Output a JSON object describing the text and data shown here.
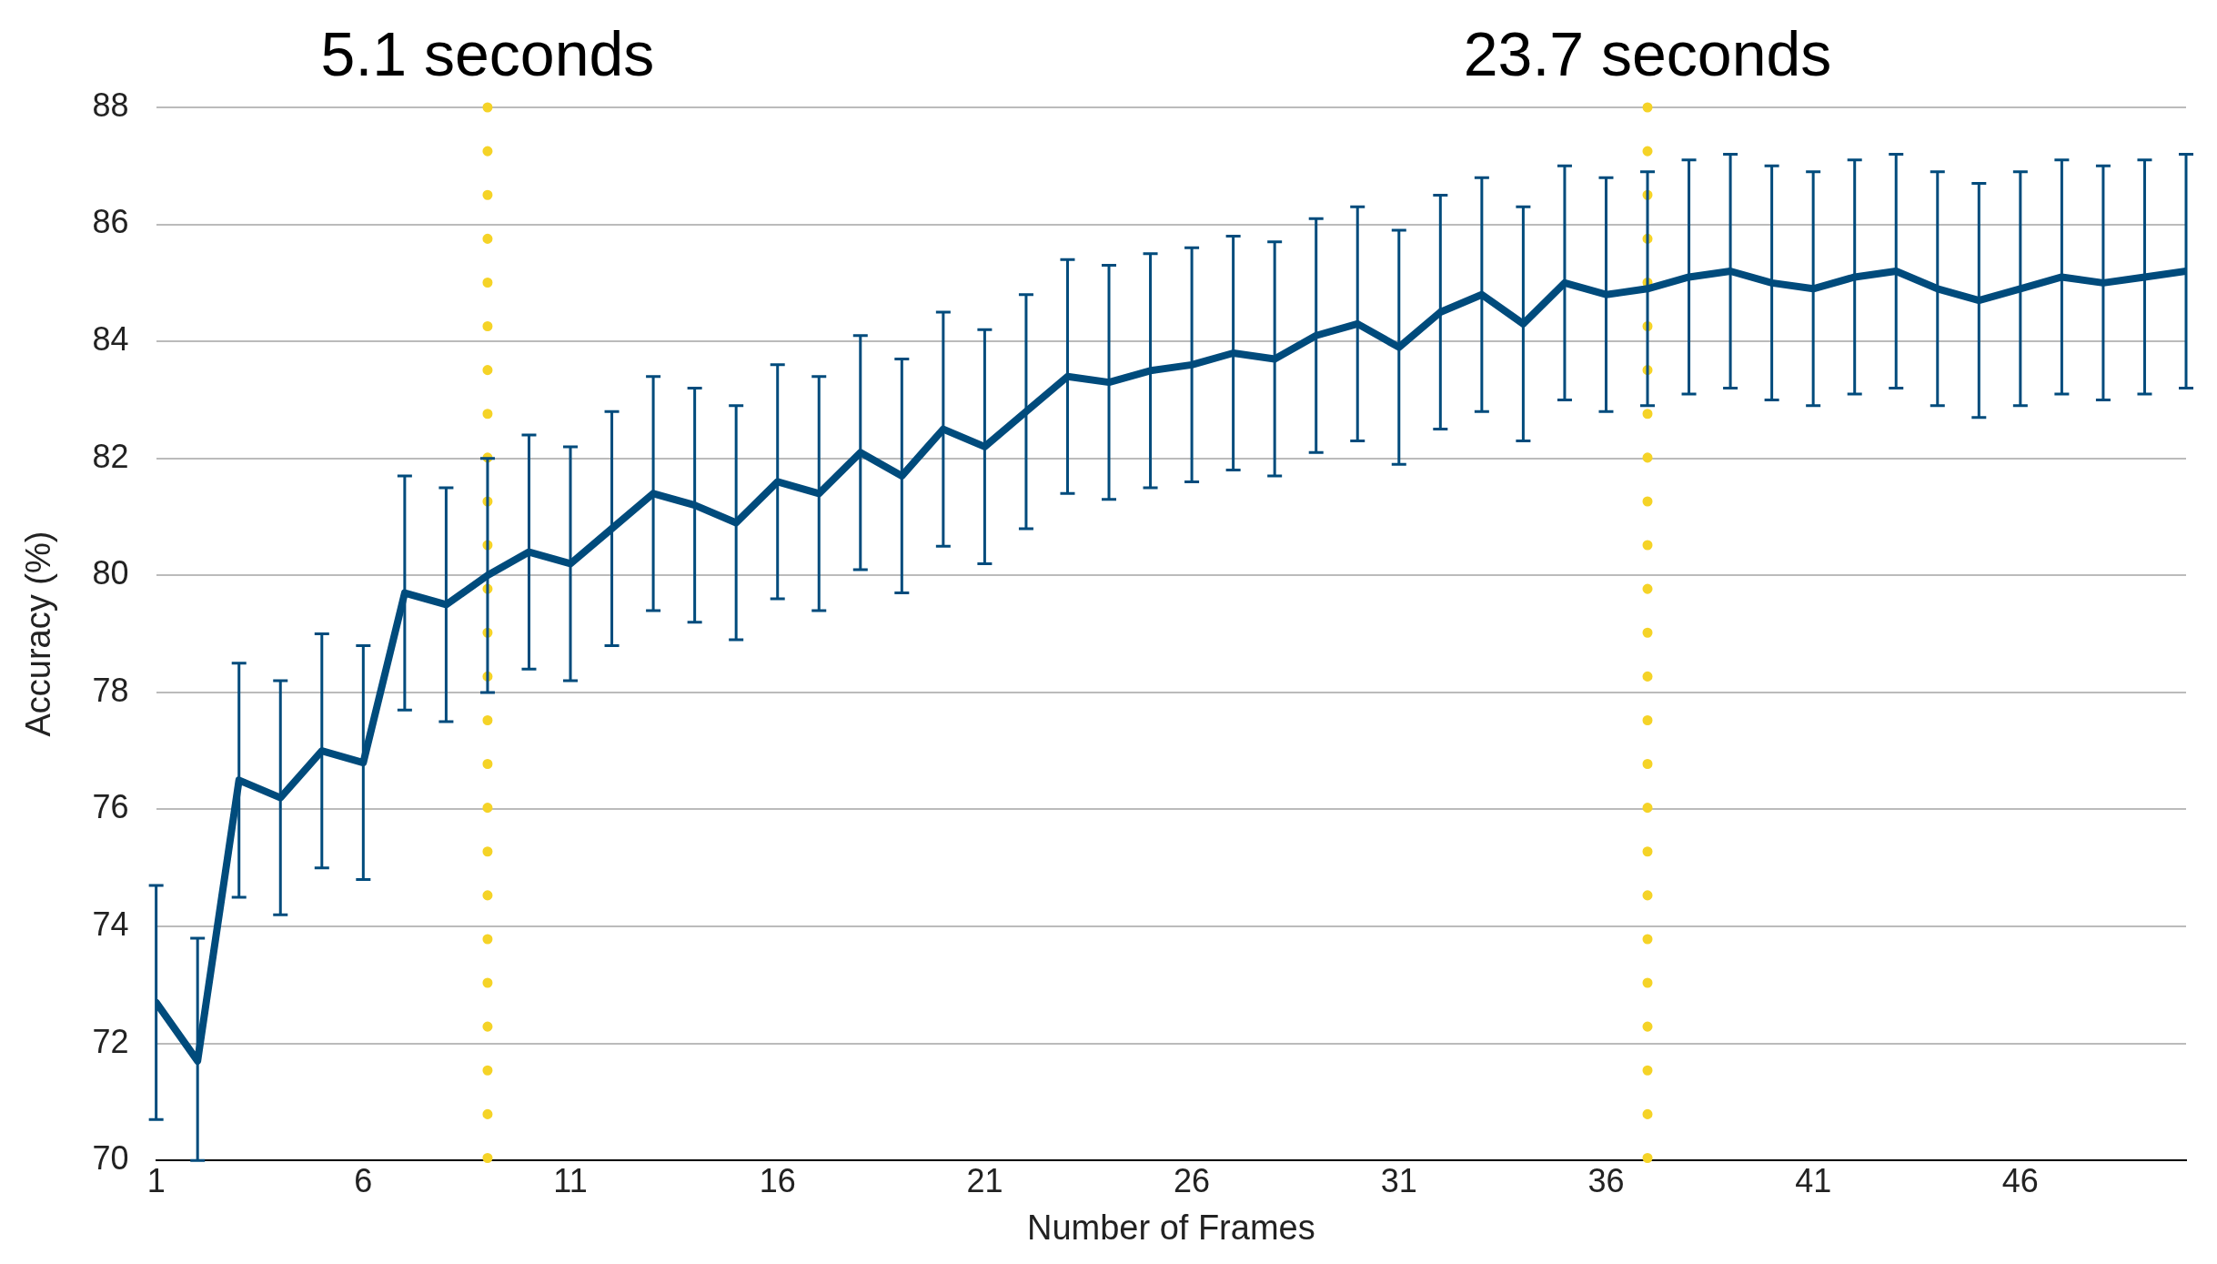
{
  "chart_data": {
    "type": "line",
    "xlabel": "Number of Frames",
    "ylabel": "Accuracy (%)",
    "x": [
      1,
      2,
      3,
      4,
      5,
      6,
      7,
      8,
      9,
      10,
      11,
      12,
      13,
      14,
      15,
      16,
      17,
      18,
      19,
      20,
      21,
      22,
      23,
      24,
      25,
      26,
      27,
      28,
      29,
      30,
      31,
      32,
      33,
      34,
      35,
      36,
      37,
      38,
      39,
      40,
      41,
      42,
      43,
      44,
      45,
      46,
      47,
      48,
      49,
      50
    ],
    "series": [
      {
        "color": "#004b7c",
        "values": [
          72.7,
          71.7,
          76.5,
          76.2,
          77.0,
          76.8,
          79.7,
          79.5,
          80.0,
          80.4,
          80.2,
          80.8,
          81.4,
          81.2,
          80.9,
          81.6,
          81.4,
          82.1,
          81.7,
          82.5,
          82.2,
          82.8,
          83.4,
          83.3,
          83.5,
          83.6,
          83.8,
          83.7,
          84.1,
          84.3,
          83.9,
          84.5,
          84.8,
          84.3,
          85.0,
          84.8,
          84.9,
          85.1,
          85.2,
          85.0,
          84.9,
          85.1,
          85.2,
          84.9,
          84.7,
          84.9,
          85.1,
          85.0,
          85.1,
          85.2
        ],
        "errors": [
          2,
          [
            70,
            73.8
          ],
          2,
          2,
          2,
          2,
          2,
          2,
          2,
          2,
          2,
          2,
          2,
          2,
          2,
          2,
          2,
          2,
          2,
          2,
          2,
          2,
          2,
          2,
          2,
          2,
          2,
          2,
          2,
          2,
          2,
          2,
          2,
          2,
          2,
          2,
          2,
          2,
          2,
          2,
          2,
          2,
          2,
          2,
          2,
          2,
          2,
          2,
          2,
          2
        ]
      }
    ],
    "xlim": [
      1,
      50
    ],
    "xticks": [
      1,
      6,
      11,
      16,
      21,
      26,
      31,
      36,
      41,
      46
    ],
    "ylim": [
      70,
      88
    ],
    "yticks": [
      70,
      72,
      74,
      76,
      78,
      80,
      82,
      84,
      86,
      88
    ],
    "grid": "y",
    "marker": "none",
    "line_style": "solid",
    "legend": false,
    "ref_lines": [
      {
        "axis": "x",
        "value": 9,
        "label": "5.1 seconds",
        "color": "#f5d327",
        "line_style": "dotted"
      },
      {
        "axis": "x",
        "value": 37,
        "label": "23.7 seconds",
        "color": "#f5d327",
        "line_style": "dotted"
      }
    ]
  }
}
